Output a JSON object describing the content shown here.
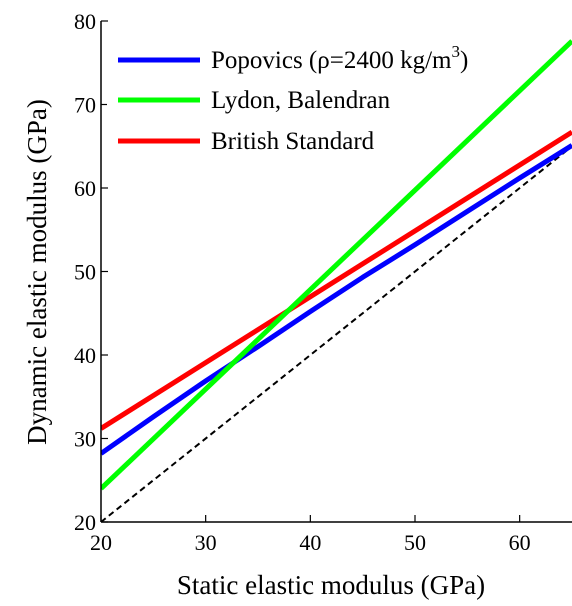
{
  "chart_data": {
    "type": "line",
    "xlabel": "Static elastic modulus (GPa)",
    "ylabel": "Dynamic elastic modulus (GPa)",
    "xlim": [
      20,
      65
    ],
    "ylim": [
      20,
      80
    ],
    "xticks": [
      20,
      30,
      40,
      50,
      60
    ],
    "yticks": [
      20,
      30,
      40,
      50,
      60,
      70,
      80
    ],
    "grid": false,
    "legend_position": "top-left",
    "series": [
      {
        "name": "Popovics (ρ=2400 kg/m",
        "name_sup": "3",
        "name_suffix": ")",
        "color": "#0000ff",
        "x": [
          20,
          25,
          30,
          35,
          40,
          45,
          50,
          55,
          60,
          65
        ],
        "y": [
          28.2,
          32.6,
          36.9,
          41.0,
          45.2,
          49.3,
          53.2,
          57.2,
          61.2,
          65.1
        ]
      },
      {
        "name": "Lydon, Balendran",
        "color": "#00ff00",
        "x": [
          20,
          65
        ],
        "y": [
          24.0,
          77.6
        ]
      },
      {
        "name": "British Standard",
        "color": "#ff0000",
        "x": [
          20,
          65
        ],
        "y": [
          31.2,
          66.7
        ]
      },
      {
        "name": "",
        "color": "#000000",
        "dashed": true,
        "x": [
          20,
          65
        ],
        "y": [
          20,
          65
        ]
      }
    ]
  }
}
